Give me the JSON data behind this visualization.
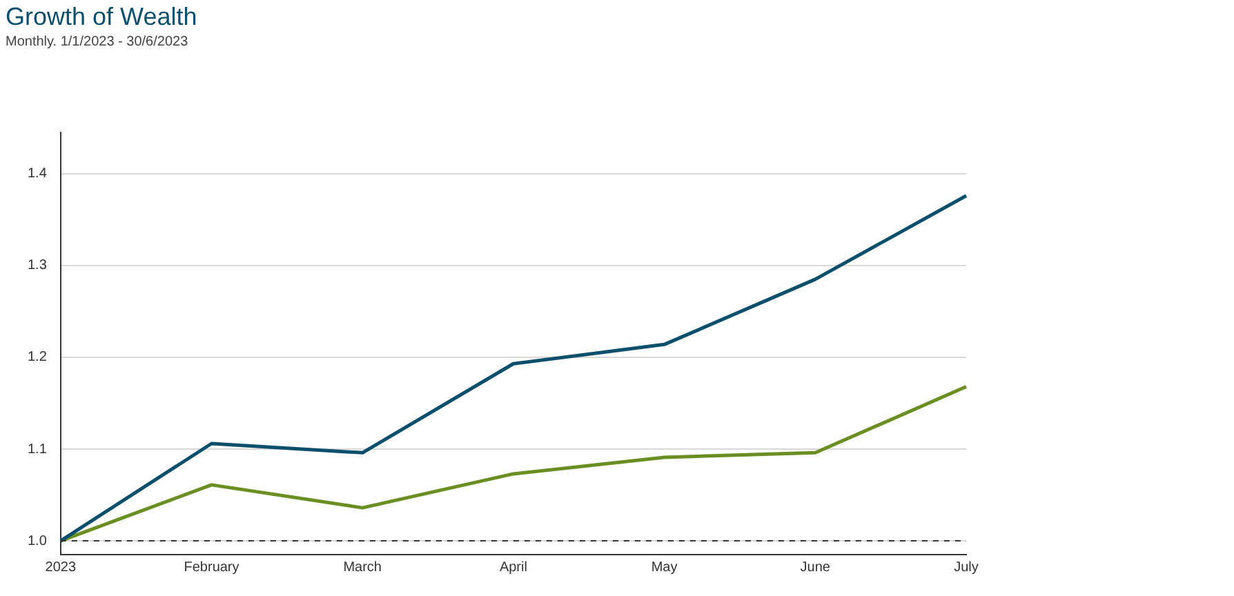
{
  "chart_data": {
    "type": "line",
    "title": "Growth of Wealth",
    "subtitle": "Monthly. 1/1/2023 - 30/6/2023",
    "categories": [
      "2023",
      "February",
      "March",
      "April",
      "May",
      "June",
      "July"
    ],
    "series": [
      {
        "color": "#0b4f6c",
        "values": [
          1.0,
          1.106,
          1.096,
          1.193,
          1.214,
          1.285,
          1.376
        ]
      },
      {
        "color": "#6b8e23",
        "values": [
          1.0,
          1.061,
          1.036,
          1.073,
          1.091,
          1.096,
          1.168
        ]
      }
    ],
    "ylim": [
      0.985,
      1.445
    ],
    "yticks": [
      {
        "value": 1.0,
        "label": "1.0"
      },
      1.1,
      1.2,
      1.3,
      1.4
    ],
    "grid": "y",
    "marker": "none",
    "line_style": "solid",
    "ref_lines": [
      {
        "axis": "y",
        "value": 1.0,
        "color": "#333333",
        "line_style": "dashed"
      }
    ]
  }
}
